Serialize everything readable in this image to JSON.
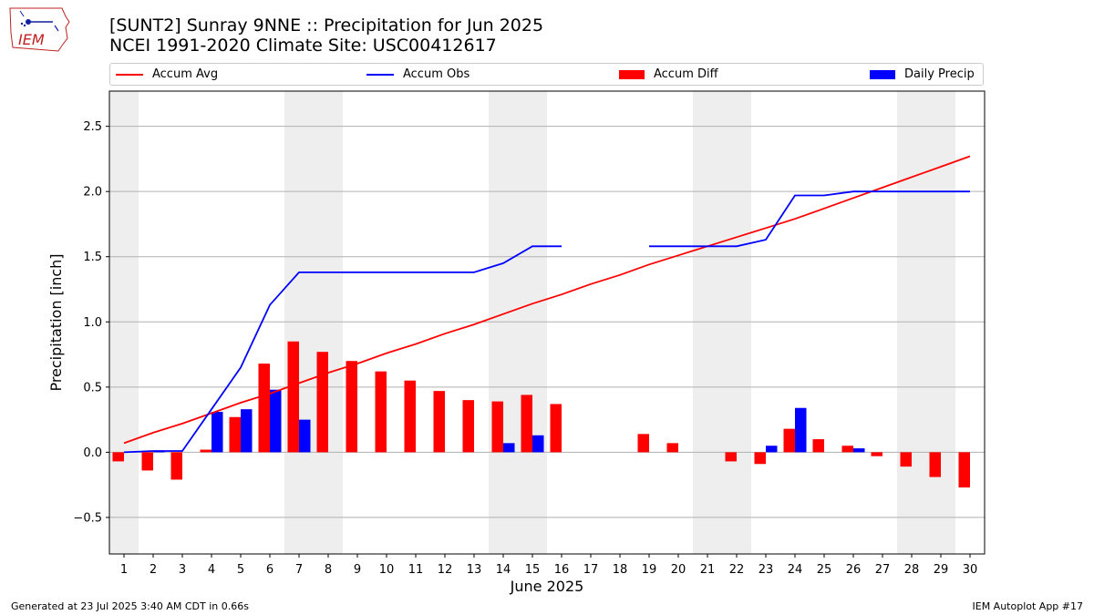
{
  "header": {
    "title_line1": "[SUNT2] Sunray 9NNE :: Precipitation for Jun 2025",
    "title_line2": "NCEI 1991-2020 Climate Site: USC00412617",
    "logo_text": "IEM"
  },
  "footer": {
    "generated": "Generated at 23 Jul 2025 3:40 AM CDT in 0.66s",
    "app": "IEM Autoplot App #17"
  },
  "chart_data": {
    "type": "bar",
    "xlabel": "June 2025",
    "ylabel": "Precipitation [inch]",
    "ylim": [
      -0.78,
      2.77
    ],
    "yticks": [
      -0.5,
      0.0,
      0.5,
      1.0,
      1.5,
      2.0,
      2.5
    ],
    "ytick_labels": [
      "−0.5",
      "0.0",
      "0.5",
      "1.0",
      "1.5",
      "2.0",
      "2.5"
    ],
    "grid": "horizontal",
    "legend_position": "top",
    "categories": [
      1,
      2,
      3,
      4,
      5,
      6,
      7,
      8,
      9,
      10,
      11,
      12,
      13,
      14,
      15,
      16,
      17,
      18,
      19,
      20,
      21,
      22,
      23,
      24,
      25,
      26,
      27,
      28,
      29,
      30
    ],
    "weekend_shading": [
      [
        1,
        1
      ],
      [
        7,
        8
      ],
      [
        14,
        15
      ],
      [
        21,
        22
      ],
      [
        28,
        29
      ]
    ],
    "colors": {
      "avg": "#ff0000",
      "obs": "#0000ff",
      "diff": "#ff0000",
      "daily": "#0000ff",
      "shade": "#eeeeee"
    },
    "series": [
      {
        "name": "Accum Avg",
        "kind": "line",
        "values": [
          0.07,
          0.15,
          0.22,
          0.3,
          0.38,
          0.45,
          0.53,
          0.61,
          0.68,
          0.76,
          0.83,
          0.91,
          0.98,
          1.06,
          1.14,
          1.21,
          1.29,
          1.36,
          1.44,
          1.51,
          1.58,
          1.65,
          1.72,
          1.79,
          1.87,
          1.95,
          2.03,
          2.11,
          2.19,
          2.27
        ]
      },
      {
        "name": "Accum Obs",
        "kind": "line",
        "values": [
          0.0,
          0.01,
          0.01,
          0.33,
          0.65,
          1.13,
          1.38,
          1.38,
          1.38,
          1.38,
          1.38,
          1.38,
          1.38,
          1.45,
          1.58,
          1.58,
          null,
          null,
          1.58,
          1.58,
          1.58,
          1.58,
          1.63,
          1.97,
          1.97,
          2.0,
          2.0,
          2.0,
          2.0,
          2.0
        ]
      },
      {
        "name": "Accum Diff",
        "kind": "bar",
        "values": [
          -0.07,
          -0.14,
          -0.21,
          0.02,
          0.27,
          0.68,
          0.85,
          0.77,
          0.7,
          0.62,
          0.55,
          0.47,
          0.4,
          0.39,
          0.44,
          0.37,
          null,
          null,
          0.14,
          0.07,
          null,
          -0.07,
          -0.09,
          0.18,
          0.1,
          0.05,
          -0.03,
          -0.11,
          -0.19,
          -0.27
        ]
      },
      {
        "name": "Daily Precip",
        "kind": "bar",
        "values": [
          0,
          0.01,
          0,
          0.31,
          0.33,
          0.48,
          0.25,
          0,
          0,
          0,
          0,
          0,
          0,
          0.07,
          0.13,
          0,
          null,
          null,
          0,
          0,
          0,
          0,
          0.05,
          0.34,
          0,
          0.03,
          0,
          0,
          0,
          0
        ]
      }
    ]
  }
}
